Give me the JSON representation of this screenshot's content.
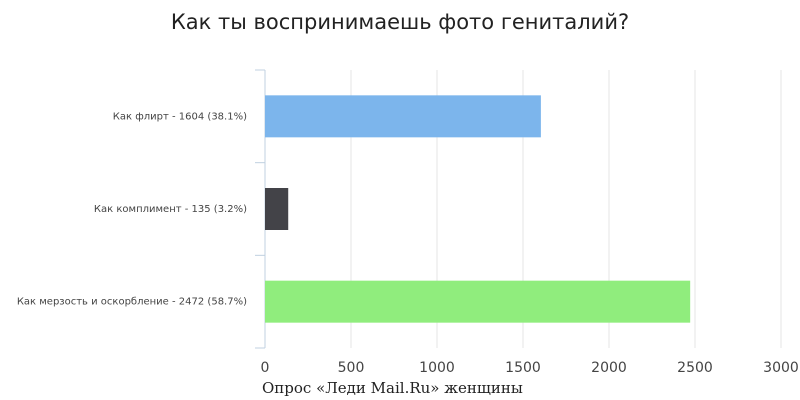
{
  "chart_data": {
    "type": "bar",
    "orientation": "horizontal",
    "title": "Как ты воспринимаешь фото гениталий?",
    "categories": [
      "Как флирт - 1604 (38.1%)",
      "Как комплимент - 135 (3.2%)",
      "Как мерзость и оскорбление - 2472 (58.7%)"
    ],
    "values": [
      1604,
      135,
      2472
    ],
    "colors": [
      "#7cb5ec",
      "#434348",
      "#90ed7d"
    ],
    "xlim": [
      0,
      3000
    ],
    "xticks": [
      0,
      500,
      1000,
      1500,
      2000,
      2500,
      3000
    ],
    "grid": true,
    "footnote": "Опрос «Леди Mail.Ru» женщины"
  }
}
